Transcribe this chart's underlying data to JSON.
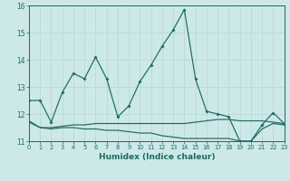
{
  "xlabel": "Humidex (Indice chaleur)",
  "xlim": [
    0,
    23
  ],
  "ylim": [
    11,
    16
  ],
  "yticks": [
    11,
    12,
    13,
    14,
    15,
    16
  ],
  "xticks": [
    0,
    1,
    2,
    3,
    4,
    5,
    6,
    7,
    8,
    9,
    10,
    11,
    12,
    13,
    14,
    15,
    16,
    17,
    18,
    19,
    20,
    21,
    22,
    23
  ],
  "bg_color": "#cde8e8",
  "line_color": "#1a6b60",
  "grid_color": "#b8d4d4",
  "line1_x": [
    0,
    1,
    2,
    3,
    4,
    5,
    6,
    7,
    8,
    9,
    10,
    11,
    12,
    13,
    14,
    15,
    16,
    17,
    18,
    19,
    20,
    21,
    22,
    23
  ],
  "line1_y": [
    12.5,
    12.5,
    11.7,
    12.8,
    13.5,
    13.3,
    14.1,
    13.3,
    11.9,
    12.3,
    13.2,
    13.8,
    14.5,
    15.1,
    15.85,
    13.3,
    12.1,
    12.0,
    11.9,
    11.0,
    11.0,
    11.6,
    12.05,
    11.65
  ],
  "line2_x": [
    0,
    1,
    2,
    3,
    4,
    5,
    6,
    7,
    8,
    9,
    10,
    11,
    12,
    13,
    14,
    15,
    16,
    17,
    18,
    19,
    20,
    21,
    22,
    23
  ],
  "line2_y": [
    11.7,
    11.5,
    11.5,
    11.55,
    11.6,
    11.6,
    11.65,
    11.65,
    11.65,
    11.65,
    11.65,
    11.65,
    11.65,
    11.65,
    11.65,
    11.7,
    11.75,
    11.8,
    11.8,
    11.75,
    11.75,
    11.75,
    11.7,
    11.65
  ],
  "line3_x": [
    0,
    1,
    2,
    3,
    4,
    5,
    6,
    7,
    8,
    9,
    10,
    11,
    12,
    13,
    14,
    15,
    16,
    17,
    18,
    19,
    20,
    21,
    22,
    23
  ],
  "line3_y": [
    11.75,
    11.5,
    11.45,
    11.5,
    11.5,
    11.45,
    11.45,
    11.4,
    11.4,
    11.35,
    11.3,
    11.3,
    11.2,
    11.15,
    11.1,
    11.1,
    11.1,
    11.1,
    11.1,
    11.0,
    11.0,
    11.45,
    11.65,
    11.6
  ]
}
